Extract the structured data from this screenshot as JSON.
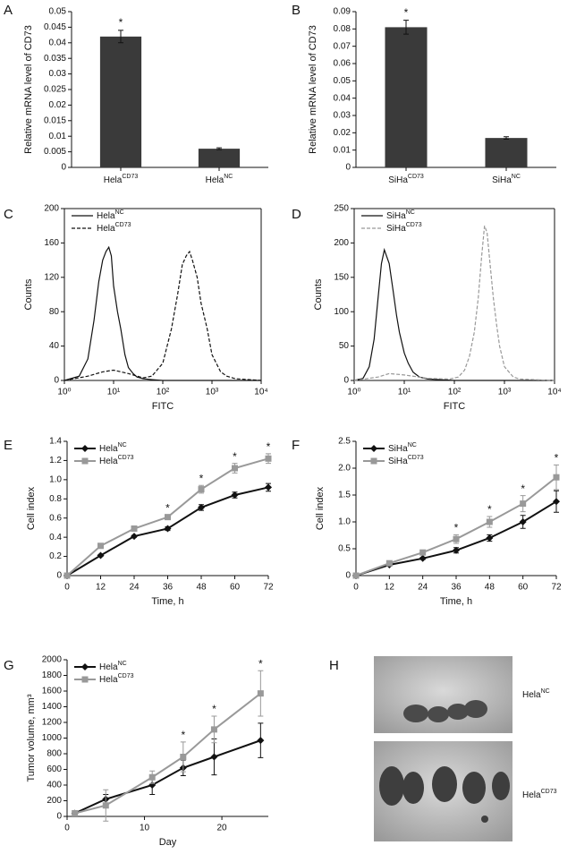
{
  "chart_data": [
    {
      "type": "bar",
      "panel_label": "A",
      "ylabel": "Relative mRNA level of CD73",
      "categories": [
        "Hela",
        "Hela"
      ],
      "category_superscripts": [
        "CD73",
        "NC"
      ],
      "values": [
        0.042,
        0.006
      ],
      "errors": [
        0.002,
        0.0003
      ],
      "significance": [
        "*",
        null
      ],
      "color": "#3a3a3a",
      "ylim": [
        0,
        0.05
      ],
      "yticks": [
        0,
        0.005,
        0.01,
        0.015,
        0.02,
        0.025,
        0.03,
        0.035,
        0.04,
        0.045,
        0.05
      ]
    },
    {
      "type": "bar",
      "panel_label": "B",
      "ylabel": "Relative mRNA level of CD73",
      "categories": [
        "SiHa",
        "SiHa"
      ],
      "category_superscripts": [
        "CD73",
        "NC"
      ],
      "values": [
        0.081,
        0.017
      ],
      "errors": [
        0.004,
        0.0007
      ],
      "significance": [
        "*",
        null
      ],
      "color": "#3a3a3a",
      "ylim": [
        0,
        0.09
      ],
      "yticks": [
        0,
        0.01,
        0.02,
        0.03,
        0.04,
        0.05,
        0.06,
        0.07,
        0.08,
        0.09
      ]
    },
    {
      "type": "line",
      "panel_label": "C",
      "xlabel": "FITC",
      "ylabel": "Counts",
      "xscale": "log",
      "frame": true,
      "legend": "upper left",
      "xlim": [
        1,
        10000
      ],
      "xticks": [
        {
          "value": 1,
          "label": "10⁰"
        },
        {
          "value": 10,
          "label": "10¹"
        },
        {
          "value": 100,
          "label": "10²"
        },
        {
          "value": 1000,
          "label": "10³"
        },
        {
          "value": 10000,
          "label": "10⁴"
        }
      ],
      "ylim": [
        0,
        200
      ],
      "yticks": [
        0,
        40,
        80,
        120,
        160,
        200
      ],
      "series": [
        {
          "name": "Hela",
          "name_superscript": "NC",
          "color": "#111111",
          "dash": false,
          "x": [
            1,
            2,
            3,
            4,
            5,
            6,
            7,
            8,
            9,
            10,
            12,
            14,
            17,
            20,
            25,
            30,
            40,
            60,
            100,
            1000,
            10000
          ],
          "values": [
            0,
            5,
            25,
            70,
            115,
            140,
            150,
            155,
            145,
            110,
            80,
            60,
            30,
            15,
            8,
            4,
            2,
            1,
            0,
            0,
            0
          ]
        },
        {
          "name": "Hela",
          "name_superscript": "CD73",
          "color": "#111111",
          "dash": true,
          "x": [
            1,
            3,
            6,
            10,
            20,
            40,
            60,
            100,
            150,
            200,
            250,
            300,
            350,
            400,
            500,
            600,
            800,
            1000,
            1500,
            2000,
            3000,
            10000
          ],
          "values": [
            0,
            5,
            10,
            12,
            8,
            3,
            5,
            20,
            60,
            100,
            135,
            145,
            150,
            140,
            120,
            90,
            60,
            30,
            10,
            5,
            2,
            0
          ]
        }
      ]
    },
    {
      "type": "line",
      "panel_label": "D",
      "xlabel": "FITC",
      "ylabel": "Counts",
      "xscale": "log",
      "frame": true,
      "legend": "upper left",
      "xlim": [
        1,
        10000
      ],
      "xticks": [
        {
          "value": 1,
          "label": "10⁰"
        },
        {
          "value": 10,
          "label": "10¹"
        },
        {
          "value": 100,
          "label": "10²"
        },
        {
          "value": 1000,
          "label": "10³"
        },
        {
          "value": 10000,
          "label": "10⁴"
        }
      ],
      "ylim": [
        0,
        250
      ],
      "yticks": [
        0,
        50,
        100,
        150,
        200,
        250
      ],
      "series": [
        {
          "name": "SiHa",
          "name_superscript": "NC",
          "color": "#111111",
          "dash": false,
          "x": [
            1,
            1.5,
            2,
            2.5,
            3,
            3.5,
            4,
            5,
            6,
            7,
            8,
            10,
            12,
            15,
            20,
            30,
            100,
            1000,
            10000
          ],
          "values": [
            0,
            3,
            20,
            60,
            120,
            170,
            190,
            170,
            130,
            95,
            70,
            40,
            25,
            12,
            5,
            2,
            0,
            0,
            0
          ]
        },
        {
          "name": "SiHa",
          "name_superscript": "CD73",
          "color": "#999999",
          "dash": true,
          "x": [
            1,
            3,
            5,
            10,
            30,
            80,
            120,
            160,
            200,
            250,
            300,
            350,
            400,
            450,
            500,
            600,
            700,
            800,
            1000,
            1500,
            2000,
            10000
          ],
          "values": [
            0,
            5,
            10,
            8,
            3,
            2,
            5,
            15,
            35,
            70,
            120,
            180,
            225,
            215,
            180,
            120,
            80,
            50,
            20,
            5,
            2,
            0
          ]
        }
      ]
    },
    {
      "type": "line",
      "panel_label": "E",
      "xlabel": "Time, h",
      "ylabel": "Cell index",
      "legend": "upper left",
      "x": [
        0,
        12,
        24,
        36,
        48,
        60,
        72
      ],
      "xlim": [
        0,
        72
      ],
      "xticks": [
        0,
        12,
        24,
        36,
        48,
        60,
        72
      ],
      "ylim": [
        0,
        1.4
      ],
      "yticks": [
        0,
        0.2,
        0.4,
        0.6,
        0.8,
        {
          "value": 1,
          "label": "1.0"
        },
        1.2,
        1.4
      ],
      "significance": [
        null,
        null,
        null,
        "*",
        "*",
        "*",
        "*"
      ],
      "series": [
        {
          "name": "Hela",
          "name_superscript": "NC",
          "color": "#111111",
          "marker": "diamond",
          "values": [
            0,
            0.21,
            0.41,
            0.49,
            0.71,
            0.84,
            0.92
          ],
          "errors": [
            0,
            0.01,
            0.01,
            0.02,
            0.03,
            0.03,
            0.04
          ]
        },
        {
          "name": "Hela",
          "name_superscript": "CD73",
          "color": "#999999",
          "marker": "square",
          "values": [
            0,
            0.31,
            0.49,
            0.61,
            0.9,
            1.12,
            1.22
          ],
          "errors": [
            0,
            0.01,
            0.01,
            0.02,
            0.04,
            0.05,
            0.05
          ]
        }
      ]
    },
    {
      "type": "line",
      "panel_label": "F",
      "xlabel": "Time, h",
      "ylabel": "Cell index",
      "legend": "upper left",
      "x": [
        0,
        12,
        24,
        36,
        48,
        60,
        72
      ],
      "xlim": [
        0,
        72
      ],
      "xticks": [
        0,
        12,
        24,
        36,
        48,
        60,
        72
      ],
      "ylim": [
        0,
        2.5
      ],
      "yticks": [
        0,
        0.5,
        {
          "value": 1,
          "label": "1.0"
        },
        1.5,
        {
          "value": 2,
          "label": "2.0"
        },
        2.5
      ],
      "significance": [
        null,
        null,
        null,
        "*",
        "*",
        "*",
        "*"
      ],
      "series": [
        {
          "name": "SiHa",
          "name_superscript": "NC",
          "color": "#111111",
          "marker": "diamond",
          "values": [
            0,
            0.2,
            0.32,
            0.47,
            0.7,
            1.0,
            1.38
          ],
          "errors": [
            0,
            0.02,
            0.02,
            0.05,
            0.06,
            0.12,
            0.2
          ]
        },
        {
          "name": "SiHa",
          "name_superscript": "CD73",
          "color": "#999999",
          "marker": "square",
          "values": [
            0,
            0.23,
            0.43,
            0.68,
            1.0,
            1.34,
            1.83
          ],
          "errors": [
            0,
            0.02,
            0.02,
            0.08,
            0.1,
            0.15,
            0.23
          ]
        }
      ]
    },
    {
      "type": "line",
      "panel_label": "G",
      "xlabel": "Day",
      "ylabel": "Tumor volume, mm³",
      "legend": "upper left",
      "x": [
        1,
        5,
        11,
        15,
        19,
        25
      ],
      "xlim": [
        0,
        26
      ],
      "xticks": [
        0,
        10,
        20
      ],
      "ylim": [
        0,
        2000
      ],
      "yticks": [
        0,
        200,
        400,
        600,
        800,
        1000,
        1200,
        1400,
        1600,
        1800,
        2000
      ],
      "significance": [
        null,
        null,
        null,
        "*",
        "*",
        "*"
      ],
      "series": [
        {
          "name": "Hela",
          "name_superscript": "NC",
          "color": "#111111",
          "marker": "diamond",
          "values": [
            40,
            220,
            400,
            620,
            760,
            970
          ],
          "errors": [
            10,
            60,
            120,
            100,
            230,
            220
          ]
        },
        {
          "name": "Hela",
          "name_superscript": "CD73",
          "color": "#999999",
          "marker": "square",
          "values": [
            40,
            140,
            500,
            760,
            1110,
            1570
          ],
          "errors": [
            10,
            200,
            80,
            190,
            170,
            290
          ]
        }
      ]
    }
  ],
  "photo_panel": {
    "panel_label": "H",
    "captions": [
      {
        "text": "Hela",
        "superscript": "NC"
      },
      {
        "text": "Hela",
        "superscript": "CD73"
      }
    ]
  }
}
